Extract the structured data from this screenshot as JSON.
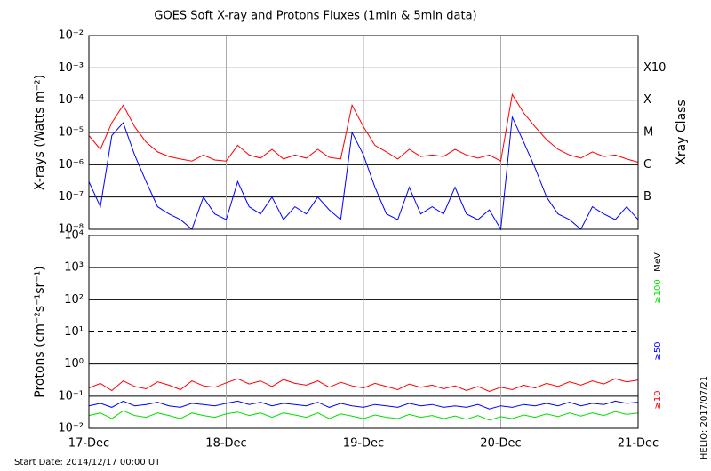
{
  "chart_data": [
    {
      "type": "line",
      "title": "GOES Soft X-ray and Protons Fluxes   (1min & 5min data)",
      "ylabel": "X-rays (Watts m⁻²)",
      "y2label": "Xray Class",
      "log_y": true,
      "grid": true,
      "x": [
        0,
        2,
        4,
        6,
        8,
        10,
        12,
        14,
        16,
        18,
        20,
        22,
        24,
        26,
        28,
        30,
        32,
        34,
        36,
        38,
        40,
        42,
        44,
        46,
        48,
        50,
        52,
        54,
        56,
        58,
        60,
        62,
        64,
        66,
        68,
        70,
        72,
        74,
        76,
        78,
        80,
        82,
        84,
        86,
        88,
        90,
        92,
        94,
        96
      ],
      "xlim": [
        0,
        96
      ],
      "xticks": [
        0,
        24,
        48,
        72,
        96
      ],
      "ylim": [
        1e-08,
        0.01
      ],
      "yticks": [
        {
          "value": 1e-08,
          "label": "10⁻⁸"
        },
        {
          "value": 1e-07,
          "label": "10⁻⁷"
        },
        {
          "value": 1e-06,
          "label": "10⁻⁶"
        },
        {
          "value": 1e-05,
          "label": "10⁻⁵"
        },
        {
          "value": 0.0001,
          "label": "10⁻⁴"
        },
        {
          "value": 0.001,
          "label": "10⁻³"
        },
        {
          "value": 0.01,
          "label": "10⁻²"
        }
      ],
      "y2ticks": [
        {
          "value": 1e-07,
          "label": "B"
        },
        {
          "value": 1e-06,
          "label": "C"
        },
        {
          "value": 1e-05,
          "label": "M"
        },
        {
          "value": 0.0001,
          "label": "X"
        },
        {
          "value": 0.001,
          "label": "X10"
        }
      ],
      "series": [
        {
          "color": "#ff0000",
          "values": [
            8e-06,
            3e-06,
            2e-05,
            7e-05,
            1.5e-05,
            5e-06,
            2.5e-06,
            1.8e-06,
            1.5e-06,
            1.3e-06,
            2e-06,
            1.4e-06,
            1.3e-06,
            4e-06,
            2e-06,
            1.6e-06,
            3e-06,
            1.5e-06,
            2e-06,
            1.6e-06,
            3e-06,
            1.7e-06,
            1.5e-06,
            7e-05,
            1.5e-05,
            4e-06,
            2.5e-06,
            1.5e-06,
            3e-06,
            1.8e-06,
            2e-06,
            1.8e-06,
            3e-06,
            2e-06,
            1.6e-06,
            2e-06,
            1.3e-06,
            0.00015,
            4e-05,
            1.5e-05,
            6e-06,
            3e-06,
            2e-06,
            1.6e-06,
            2.5e-06,
            1.8e-06,
            2e-06,
            1.5e-06,
            1.2e-06
          ]
        },
        {
          "color": "#0000ff",
          "values": [
            3e-07,
            5e-08,
            8e-06,
            2e-05,
            2e-06,
            3e-07,
            5e-08,
            3e-08,
            2e-08,
            1e-08,
            1e-07,
            3e-08,
            2e-08,
            3e-07,
            5e-08,
            3e-08,
            1e-07,
            2e-08,
            5e-08,
            3e-08,
            1e-07,
            4e-08,
            2e-08,
            1e-05,
            2e-06,
            2e-07,
            3e-08,
            2e-08,
            2e-07,
            3e-08,
            5e-08,
            3e-08,
            2e-07,
            3e-08,
            2e-08,
            4e-08,
            1e-08,
            3e-05,
            5e-06,
            8e-07,
            1e-07,
            3e-08,
            2e-08,
            1e-08,
            5e-08,
            3e-08,
            2e-08,
            5e-08,
            2e-08
          ]
        }
      ]
    },
    {
      "type": "line",
      "ylabel": "Protons (cm⁻²s⁻¹sr⁻¹)",
      "units": "MeV",
      "log_y": true,
      "grid": true,
      "threshold": 10,
      "x": [
        0,
        2,
        4,
        6,
        8,
        10,
        12,
        14,
        16,
        18,
        20,
        22,
        24,
        26,
        28,
        30,
        32,
        34,
        36,
        38,
        40,
        42,
        44,
        46,
        48,
        50,
        52,
        54,
        56,
        58,
        60,
        62,
        64,
        66,
        68,
        70,
        72,
        74,
        76,
        78,
        80,
        82,
        84,
        86,
        88,
        90,
        92,
        94,
        96
      ],
      "xlim": [
        0,
        96
      ],
      "xticks": [
        {
          "value": 0,
          "label": "17-Dec"
        },
        {
          "value": 24,
          "label": "18-Dec"
        },
        {
          "value": 48,
          "label": "19-Dec"
        },
        {
          "value": 72,
          "label": "20-Dec"
        },
        {
          "value": 96,
          "label": "21-Dec"
        }
      ],
      "ylim": [
        0.01,
        10000
      ],
      "yticks": [
        {
          "value": 0.01,
          "label": "10⁻²"
        },
        {
          "value": 0.1,
          "label": "10⁻¹"
        },
        {
          "value": 1,
          "label": "10⁰"
        },
        {
          "value": 10,
          "label": "10¹"
        },
        {
          "value": 100,
          "label": "10²"
        },
        {
          "value": 1000,
          "label": "10³"
        },
        {
          "value": 10000,
          "label": "10⁴"
        }
      ],
      "series": [
        {
          "name": "≥10",
          "color": "#ff0000",
          "values": [
            0.18,
            0.25,
            0.15,
            0.3,
            0.2,
            0.17,
            0.28,
            0.22,
            0.16,
            0.3,
            0.21,
            0.19,
            0.26,
            0.35,
            0.24,
            0.3,
            0.2,
            0.33,
            0.25,
            0.22,
            0.3,
            0.19,
            0.27,
            0.21,
            0.18,
            0.25,
            0.2,
            0.16,
            0.24,
            0.19,
            0.22,
            0.17,
            0.21,
            0.15,
            0.2,
            0.14,
            0.19,
            0.16,
            0.22,
            0.18,
            0.25,
            0.2,
            0.28,
            0.22,
            0.3,
            0.24,
            0.35,
            0.28,
            0.32
          ]
        },
        {
          "name": "≥50",
          "color": "#0000ff",
          "values": [
            0.05,
            0.06,
            0.045,
            0.07,
            0.05,
            0.055,
            0.065,
            0.05,
            0.045,
            0.06,
            0.055,
            0.05,
            0.06,
            0.07,
            0.055,
            0.065,
            0.05,
            0.06,
            0.055,
            0.05,
            0.065,
            0.045,
            0.06,
            0.05,
            0.045,
            0.055,
            0.05,
            0.045,
            0.06,
            0.05,
            0.055,
            0.045,
            0.05,
            0.045,
            0.055,
            0.04,
            0.05,
            0.045,
            0.055,
            0.05,
            0.06,
            0.05,
            0.065,
            0.05,
            0.06,
            0.055,
            0.07,
            0.06,
            0.065
          ]
        },
        {
          "name": "≥100",
          "color": "#00e000",
          "values": [
            0.025,
            0.03,
            0.02,
            0.035,
            0.025,
            0.022,
            0.03,
            0.025,
            0.02,
            0.03,
            0.025,
            0.022,
            0.028,
            0.032,
            0.025,
            0.03,
            0.022,
            0.03,
            0.026,
            0.022,
            0.03,
            0.02,
            0.028,
            0.024,
            0.02,
            0.026,
            0.022,
            0.02,
            0.027,
            0.022,
            0.025,
            0.02,
            0.024,
            0.019,
            0.025,
            0.018,
            0.023,
            0.02,
            0.026,
            0.022,
            0.028,
            0.023,
            0.03,
            0.024,
            0.03,
            0.025,
            0.033,
            0.027,
            0.03
          ]
        }
      ]
    }
  ],
  "footer": {
    "start_date": "Start Date: 2014/12/17 00:00 UT",
    "credit": "HELIO: 2017/07/21"
  }
}
